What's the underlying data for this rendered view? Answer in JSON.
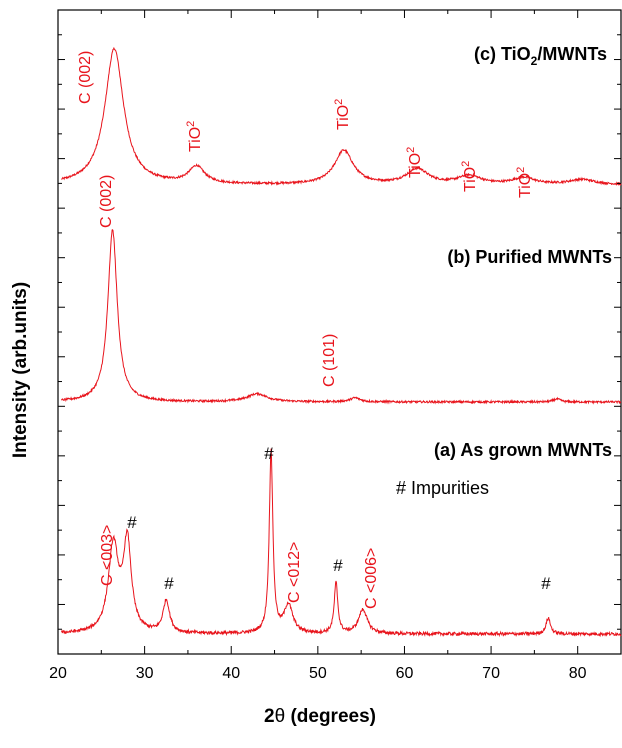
{
  "chart_data": {
    "type": "line",
    "title": "",
    "xlabel": "2θ (degrees)",
    "ylabel": "Intensity (arb.units)",
    "xlim": [
      20,
      85
    ],
    "xticks": [
      20,
      30,
      40,
      50,
      60,
      70,
      80
    ],
    "y_ticks_labeled": false,
    "grid": false,
    "line_color": "#e8141c",
    "series": [
      {
        "name": "(c) TiO2/MWNTs",
        "title_main": "(c) TiO",
        "title_sub": "2",
        "title_tail": "/MWNTs",
        "baseline": 0.1,
        "noise": 0.006,
        "peaks": [
          {
            "x": 26.5,
            "h": 0.8,
            "w": 1.3,
            "label": "C (002)"
          },
          {
            "x": 36.0,
            "h": 0.1,
            "w": 1.1,
            "label": "TiO2"
          },
          {
            "x": 53.0,
            "h": 0.2,
            "w": 1.3,
            "label": "TiO2"
          },
          {
            "x": 61.5,
            "h": 0.09,
            "w": 1.5,
            "label": "TiO2"
          },
          {
            "x": 67.5,
            "h": 0.05,
            "w": 1.6,
            "label": "TiO2"
          },
          {
            "x": 73.8,
            "h": 0.04,
            "w": 1.5,
            "label": "TiO2"
          },
          {
            "x": 80.5,
            "h": 0.03,
            "w": 1.8,
            "label": ""
          }
        ]
      },
      {
        "name": "(b) Purified MWNTs",
        "baseline": 0.0,
        "noise": 0.005,
        "peaks": [
          {
            "x": 26.3,
            "h": 0.86,
            "w": 0.65,
            "label": "C (002)"
          },
          {
            "x": 43.0,
            "h": 0.04,
            "w": 1.4,
            "label": "C (101)"
          },
          {
            "x": 54.3,
            "h": 0.02,
            "w": 0.7,
            "label": ""
          },
          {
            "x": 77.6,
            "h": 0.015,
            "w": 0.5,
            "label": ""
          }
        ]
      },
      {
        "name": "(a) As grown MWNTs",
        "baseline": 0.0,
        "noise": 0.008,
        "peaks": [
          {
            "x": 26.4,
            "h": 0.43,
            "w": 0.7,
            "label": "C <003>"
          },
          {
            "x": 28.0,
            "h": 0.44,
            "w": 0.55,
            "label": "#"
          },
          {
            "x": 32.5,
            "h": 0.16,
            "w": 0.45,
            "label": "#"
          },
          {
            "x": 44.6,
            "h": 0.9,
            "w": 0.25,
            "label": "#"
          },
          {
            "x": 46.6,
            "h": 0.14,
            "w": 0.6,
            "label": "C <012>"
          },
          {
            "x": 52.1,
            "h": 0.25,
            "w": 0.25,
            "label": "#"
          },
          {
            "x": 55.2,
            "h": 0.12,
            "w": 0.6,
            "label": "C <006>"
          },
          {
            "x": 76.6,
            "h": 0.08,
            "w": 0.3,
            "label": "#"
          }
        ]
      }
    ],
    "annotations": {
      "impurities_note": "# Impurities",
      "tio2_main": "TiO",
      "tio2_sub": "2"
    }
  }
}
